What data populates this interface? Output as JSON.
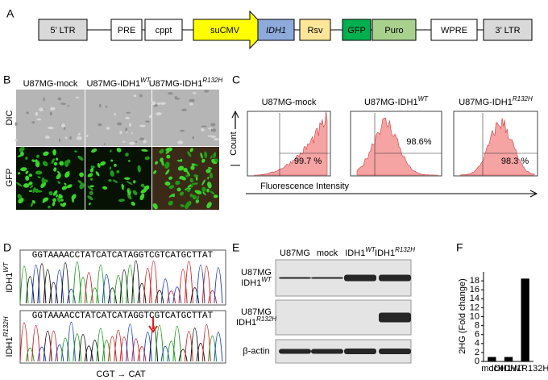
{
  "panel_a": {
    "label": "A",
    "elements": [
      "5’ LTR",
      "PRE",
      "cppt",
      "suCMV",
      "IDH1",
      "Rsv",
      "GFP",
      "Puro",
      "WPRE",
      "3’ LTR"
    ]
  },
  "panel_b": {
    "label": "B",
    "columns": [
      {
        "text": "U87MG-mock"
      },
      {
        "text": "U87MG-IDH1",
        "sup": "WT"
      },
      {
        "text": "U87MG-IDH1",
        "sup": "R132H"
      }
    ],
    "rows": [
      "DIC",
      "GFP"
    ]
  },
  "panel_c": {
    "label": "C",
    "columns": [
      {
        "text": "U87MG-mock"
      },
      {
        "text": "U87MG-IDH1",
        "sup": "WT"
      },
      {
        "text": "U87MG-IDH1",
        "sup": "R132H"
      }
    ],
    "percentages": [
      "99.7 %",
      "98.6%",
      "98.3 %"
    ],
    "y_label": "Count",
    "x_label": "Fluorescence Intensity"
  },
  "panel_d": {
    "label": "D",
    "rows": [
      {
        "text": "IDH1",
        "sup": "WT"
      },
      {
        "text": "IDH1",
        "sup": "R132H"
      }
    ],
    "sequence": "GGTAAAACCTATCATCATAGGTCGTCATGCTTAT",
    "mutation": "CGT → CAT"
  },
  "panel_e": {
    "label": "E",
    "columns": [
      {
        "text": "U87MG"
      },
      {
        "text": "mock"
      },
      {
        "text": "IDH1",
        "sup": "WT"
      },
      {
        "text": "IDH1",
        "sup": "R132H"
      }
    ],
    "rows": [
      [
        {
          "text": "U87MG"
        },
        {
          "text": "IDH1",
          "sup": "WT"
        }
      ],
      [
        {
          "text": "U87MG"
        },
        {
          "text": "IDH1",
          "sup": "R132H"
        }
      ],
      [
        {
          "text": "β-actin"
        }
      ]
    ]
  },
  "chart_data": {
    "type": "bar",
    "label": "F",
    "y_label": "2HG (Fold change)",
    "categories": [
      "mock",
      "IDH1WT",
      "IDH1R132H"
    ],
    "values": [
      1,
      1,
      18.5
    ],
    "color": "#000000",
    "ylim": [
      0,
      20
    ],
    "yticks": [
      0,
      2,
      4,
      6,
      8,
      10,
      12,
      14,
      16,
      18
    ]
  }
}
